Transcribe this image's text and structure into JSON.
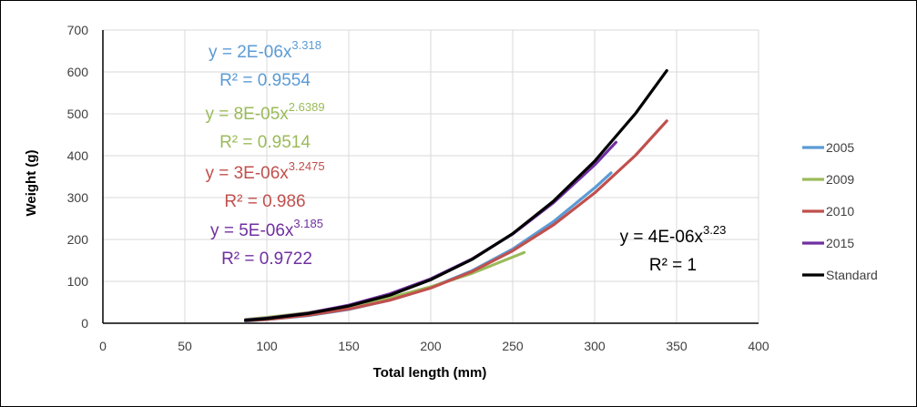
{
  "chart_data": {
    "type": "line",
    "title": "",
    "xlabel": "Total length (mm)",
    "ylabel": "Weight (g)",
    "xlim": [
      0,
      400
    ],
    "ylim": [
      0,
      700
    ],
    "x_ticks": [
      "0",
      "50",
      "100",
      "150",
      "200",
      "250",
      "300",
      "350",
      "400"
    ],
    "y_ticks": [
      "0",
      "100",
      "200",
      "300",
      "400",
      "500",
      "600",
      "700"
    ],
    "grid": "vertical and horizontal",
    "legend_position": "right",
    "series": [
      {
        "name": "2005",
        "color": "#5B9BD5",
        "x": [
          87,
          100,
          125,
          150,
          175,
          200,
          225,
          250,
          275,
          300,
          310
        ],
        "y": [
          5,
          9,
          18,
          33,
          55,
          85,
          125,
          177,
          243,
          323,
          359
        ]
      },
      {
        "name": "2009",
        "color": "#9BBB59",
        "x": [
          87,
          100,
          125,
          150,
          175,
          200,
          225,
          257
        ],
        "y": [
          9,
          14,
          25,
          41,
          61,
          87,
          119,
          169
        ]
      },
      {
        "name": "2010",
        "color": "#C0504D",
        "x": [
          87,
          100,
          125,
          150,
          175,
          200,
          225,
          250,
          275,
          300,
          325,
          344
        ],
        "y": [
          6,
          9,
          19,
          34,
          55,
          84,
          123,
          173,
          235,
          311,
          401,
          483
        ]
      },
      {
        "name": "2015",
        "color": "#7030A0",
        "x": [
          87,
          100,
          125,
          150,
          175,
          200,
          225,
          250,
          275,
          300,
          313
        ],
        "y": [
          8,
          12,
          24,
          43,
          70,
          106,
          153,
          213,
          288,
          378,
          432
        ]
      },
      {
        "name": "Standard",
        "color": "#000000",
        "x": [
          87,
          100,
          125,
          150,
          175,
          200,
          225,
          250,
          275,
          300,
          325,
          344
        ],
        "y": [
          7,
          11,
          23,
          41,
          67,
          104,
          152,
          214,
          292,
          387,
          501,
          603
        ]
      }
    ],
    "annotations": [
      {
        "base": "y = 2E-06x",
        "exp": "3.318",
        "r2": "R² = 0.9554",
        "color": "#5B9BD5"
      },
      {
        "base": "y = 8E-05x",
        "exp": "2.6389",
        "r2": "R² = 0.9514",
        "color": "#9BBB59"
      },
      {
        "base": "y = 3E-06x",
        "exp": "3.2475",
        "r2": "R² = 0.986",
        "color": "#C0504D"
      },
      {
        "base": "y = 5E-06x",
        "exp": "3.185",
        "r2": "R² = 0.9722",
        "color": "#7030A0"
      },
      {
        "base": "y = 4E-06x",
        "exp": "3.23",
        "r2": "R² = 1",
        "color": "#000000"
      }
    ]
  }
}
